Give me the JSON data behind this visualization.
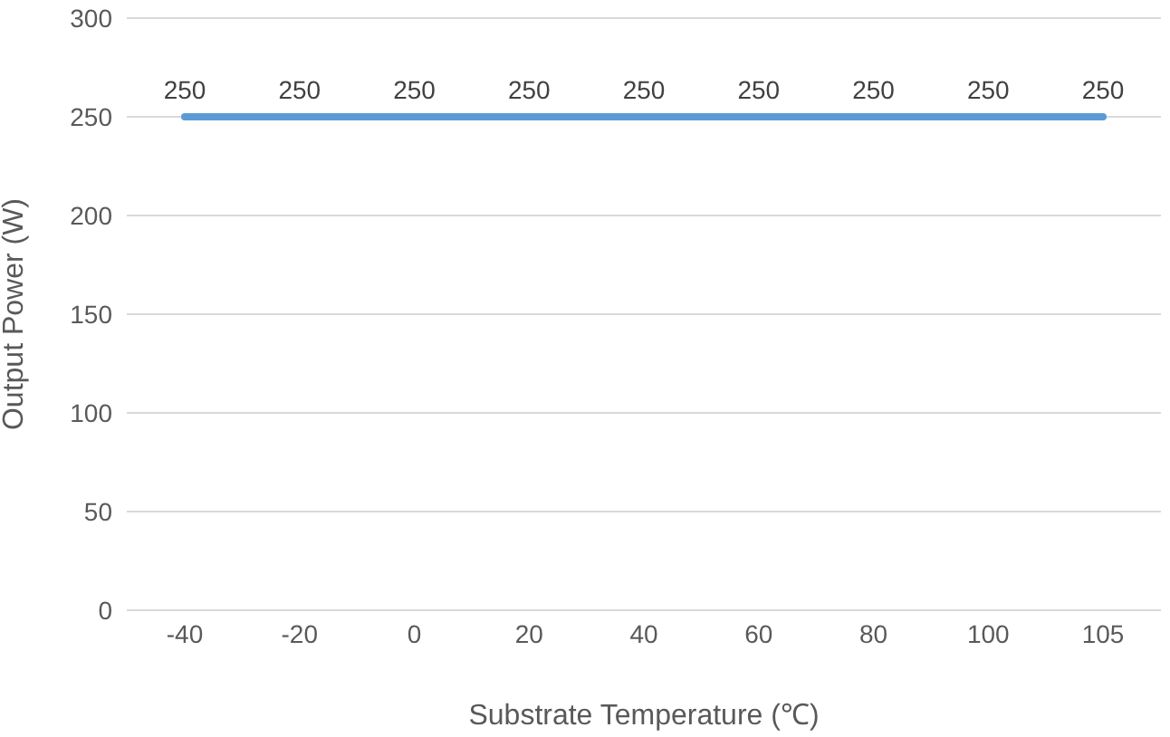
{
  "chart_data": {
    "type": "line",
    "xlabel": "Substrate Temperature (℃)",
    "ylabel": "Output Power (W)",
    "categories": [
      "-40",
      "-20",
      "0",
      "20",
      "40",
      "60",
      "80",
      "100",
      "105"
    ],
    "series": [
      {
        "color": "#5b9bd5",
        "values": [
          250,
          250,
          250,
          250,
          250,
          250,
          250,
          250,
          250
        ]
      }
    ],
    "ylim": [
      0,
      300
    ],
    "yticks": [
      0,
      50,
      100,
      150,
      200,
      250,
      300
    ],
    "grid": "y",
    "marker": "none",
    "line_style": "solid",
    "data_labels": true
  }
}
